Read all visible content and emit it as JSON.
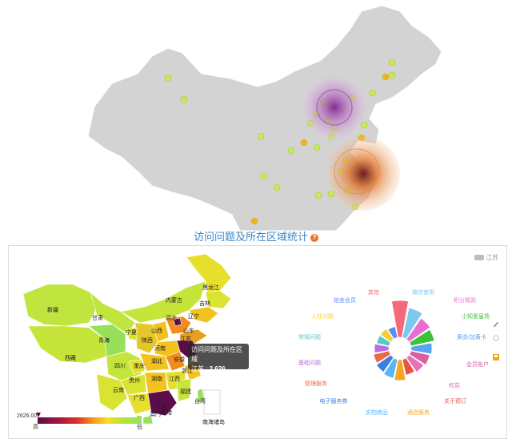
{
  "section_title": "访问问题及所在区域统计",
  "top_map": {
    "base_color": "#d3d3d3",
    "marker_color": "#c8e85a",
    "highlight_color": "#f2b01e"
  },
  "legend": {
    "label": "江苏"
  },
  "tooltip": {
    "title": "访问问题及所在区域",
    "region": "江苏",
    "value": "2,626"
  },
  "color_scale": {
    "max_label": "2626.00",
    "high_label": "高",
    "low_label": "低",
    "colors": [
      "#5b0d4a",
      "#a2163e",
      "#e0342a",
      "#f39c1a",
      "#f6e022",
      "#b6e23a",
      "#9be15c"
    ]
  },
  "province_labels": [
    "新疆",
    "西藏",
    "青海",
    "甘肃",
    "宁夏",
    "四川",
    "云南",
    "重庆",
    "贵州",
    "广西",
    "陕西",
    "山西",
    "河南",
    "湖北",
    "湖南",
    "广东",
    "江西",
    "安徽",
    "浙江",
    "福建",
    "江苏",
    "内蒙古",
    "黑龙江",
    "吉林",
    "辽宁",
    "河北",
    "山东",
    "台湾",
    "香港",
    "澳门",
    "南海诸岛"
  ],
  "chart_data": {
    "type": "pie",
    "subtype": "nightingale-rose",
    "categories": [
      "其他",
      "微信使用",
      "积分规则",
      "小知爱皇场",
      "黄金/加黄卡",
      "会员账户",
      "权益",
      "关于预订",
      "酒店服务",
      "实物商品",
      "电子服务券",
      "管理服务",
      "基础问题",
      "常规问题",
      "入住问题",
      "铂金会员"
    ],
    "colors": [
      "#f56a7a",
      "#7ec8f0",
      "#e86fd2",
      "#3bc43b",
      "#5aa3f0",
      "#d85fa3",
      "#e86fb8",
      "#e8553f",
      "#f5a623",
      "#5ab4f5",
      "#3f7de0",
      "#e86a4a",
      "#b86fe0",
      "#5ac8c8",
      "#f5d033",
      "#5a8ff5"
    ]
  }
}
